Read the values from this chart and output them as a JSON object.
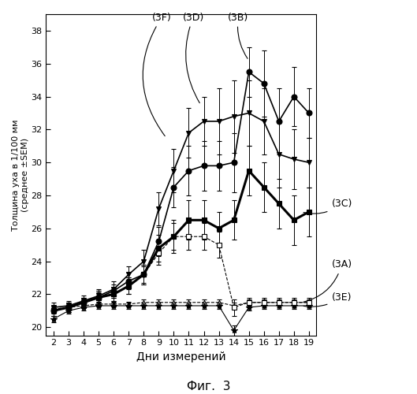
{
  "days": [
    2,
    3,
    4,
    5,
    6,
    7,
    8,
    9,
    10,
    11,
    12,
    13,
    14,
    15,
    16,
    17,
    18,
    19
  ],
  "series_order": [
    "3A",
    "3E",
    "3F",
    "3C",
    "3D",
    "3B"
  ],
  "series": {
    "3B": {
      "y": [
        21.0,
        21.2,
        21.5,
        21.8,
        22.2,
        22.8,
        23.2,
        25.2,
        28.5,
        29.5,
        29.8,
        29.8,
        30.0,
        35.5,
        34.8,
        32.5,
        34.0,
        33.0
      ],
      "yerr": [
        0.3,
        0.3,
        0.3,
        0.4,
        0.4,
        0.5,
        0.6,
        0.9,
        1.2,
        1.5,
        1.5,
        1.5,
        1.8,
        1.5,
        2.0,
        2.0,
        1.8,
        1.5
      ],
      "marker": "o",
      "linestyle": "-",
      "linewidth": 1.2,
      "markersize": 5,
      "color": "black",
      "mfc": "black"
    },
    "3D": {
      "y": [
        21.2,
        21.3,
        21.6,
        21.9,
        22.3,
        23.2,
        24.0,
        27.2,
        29.5,
        31.8,
        32.5,
        32.5,
        32.8,
        33.0,
        32.5,
        30.5,
        30.2,
        30.0
      ],
      "yerr": [
        0.3,
        0.3,
        0.3,
        0.4,
        0.5,
        0.5,
        0.7,
        1.0,
        1.3,
        1.5,
        1.5,
        2.0,
        2.2,
        2.0,
        2.0,
        2.0,
        1.8,
        1.5
      ],
      "marker": "v",
      "linestyle": "-",
      "linewidth": 1.2,
      "markersize": 5,
      "color": "black",
      "mfc": "black"
    },
    "3C": {
      "y": [
        21.0,
        21.2,
        21.5,
        21.8,
        22.0,
        22.5,
        23.2,
        24.8,
        25.5,
        26.5,
        26.5,
        26.0,
        26.5,
        29.5,
        28.5,
        27.5,
        26.5,
        27.0
      ],
      "yerr": [
        0.3,
        0.3,
        0.3,
        0.4,
        0.4,
        0.5,
        0.5,
        0.8,
        1.0,
        1.2,
        1.2,
        1.0,
        1.2,
        1.5,
        1.5,
        1.5,
        1.5,
        1.5
      ],
      "marker": "s",
      "linestyle": "-",
      "linewidth": 2.2,
      "markersize": 4,
      "color": "black",
      "mfc": "black"
    },
    "3A": {
      "y": [
        21.1,
        21.2,
        21.3,
        21.4,
        21.4,
        21.4,
        21.5,
        21.5,
        21.5,
        21.5,
        21.5,
        21.5,
        21.3,
        21.5,
        21.5,
        21.5,
        21.5,
        21.5
      ],
      "yerr": [
        0.15,
        0.15,
        0.15,
        0.15,
        0.15,
        0.15,
        0.2,
        0.2,
        0.2,
        0.2,
        0.2,
        0.2,
        0.2,
        0.2,
        0.2,
        0.2,
        0.2,
        0.2
      ],
      "marker": "^",
      "linestyle": "--",
      "linewidth": 0.8,
      "markersize": 4,
      "color": "black",
      "mfc": "white"
    },
    "3E": {
      "y": [
        20.5,
        21.0,
        21.2,
        21.3,
        21.3,
        21.3,
        21.3,
        21.3,
        21.3,
        21.3,
        21.3,
        21.3,
        19.8,
        21.2,
        21.3,
        21.3,
        21.3,
        21.3
      ],
      "yerr": [
        0.2,
        0.2,
        0.2,
        0.2,
        0.2,
        0.2,
        0.2,
        0.2,
        0.2,
        0.2,
        0.2,
        0.2,
        0.3,
        0.2,
        0.2,
        0.2,
        0.2,
        0.2
      ],
      "marker": "*",
      "linestyle": "-",
      "linewidth": 0.8,
      "markersize": 6,
      "color": "black",
      "mfc": "black"
    },
    "3F": {
      "y": [
        21.0,
        21.2,
        21.5,
        21.8,
        22.0,
        22.5,
        23.2,
        24.5,
        25.5,
        25.5,
        25.5,
        25.0,
        21.2,
        21.5,
        21.5,
        21.5,
        21.5,
        21.5
      ],
      "yerr": [
        0.2,
        0.3,
        0.3,
        0.3,
        0.4,
        0.5,
        0.6,
        0.7,
        0.8,
        0.8,
        0.8,
        0.8,
        0.5,
        0.3,
        0.3,
        0.3,
        0.3,
        0.3
      ],
      "marker": "s",
      "linestyle": "--",
      "linewidth": 0.8,
      "markersize": 4,
      "color": "black",
      "mfc": "white"
    }
  },
  "ylabel": "Толщина уха в 1/100 мм\n(среднее ±SEM)",
  "xlabel": "Дни измерений",
  "fig_label": "Фиг.  3",
  "ylim": [
    19.5,
    39.0
  ],
  "yticks": [
    20,
    22,
    24,
    26,
    28,
    30,
    32,
    34,
    36,
    38
  ],
  "xlim": [
    1.5,
    19.5
  ]
}
